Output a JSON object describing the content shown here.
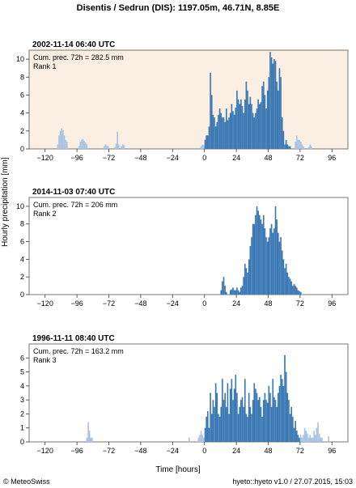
{
  "header": {
    "title": "Disentis / Sedrun (DIS): 1197.05m, 46.71N, 8.85E"
  },
  "axes": {
    "xlabel": "Time [hours]",
    "ylabel": "Hourly precipitation [mm]"
  },
  "footer": {
    "left": "© MeteoSwiss",
    "right": "hyeto::hyeto v1.0 / 27.07.2015, 15:03"
  },
  "colors": {
    "primary": "#3a78b4",
    "secondary": "#a9c3e3",
    "highlight_bg": "#fbeee2"
  },
  "chart_data": [
    {
      "type": "bar",
      "title": "2002-11-14 06:40 UTC",
      "annotation": [
        "Cum. prec. 72h = 282.5 mm",
        "Rank 1"
      ],
      "highlight_background": true,
      "xlim": [
        -132,
        108
      ],
      "ylim": [
        0,
        11
      ],
      "xticks": [
        -120,
        -96,
        -72,
        -48,
        -24,
        0,
        24,
        48,
        72,
        96
      ],
      "yticks": [
        0,
        2,
        4,
        6,
        8,
        10
      ],
      "series": [
        {
          "x": [
            -111,
            -110,
            -109,
            -108,
            -107,
            -106,
            -105,
            -104
          ],
          "values": [
            0.5,
            1.5,
            2,
            2.3,
            2.1,
            1.5,
            1.0,
            0.8
          ],
          "color": "secondary"
        },
        {
          "x": [
            -95,
            -94,
            -93,
            -92,
            -91,
            -90,
            -89
          ],
          "values": [
            0.3,
            0.8,
            1.0,
            1.1,
            0.9,
            0.7,
            0.5
          ],
          "color": "secondary"
        },
        {
          "x": [
            -76,
            -75,
            -74,
            -73
          ],
          "values": [
            0.3,
            0.5,
            0.4,
            0.3
          ],
          "color": "secondary"
        },
        {
          "x": [
            -68,
            -67,
            -66,
            -65
          ],
          "values": [
            0.2,
            0.6,
            1.9,
            0.5
          ],
          "color": "secondary"
        },
        {
          "x": [
            -63,
            -62,
            -61
          ],
          "values": [
            0.3,
            0.5,
            0.4
          ],
          "color": "secondary"
        },
        {
          "x": [
            -3,
            -2,
            -1
          ],
          "values": [
            0.3,
            0.5,
            0.4
          ],
          "color": "secondary"
        },
        {
          "x": [
            0,
            1,
            2,
            3,
            4,
            5,
            6,
            7,
            8,
            9,
            10,
            11,
            12,
            13,
            14,
            15,
            16,
            17,
            18,
            19,
            20,
            21,
            22,
            23,
            24,
            25,
            26,
            27,
            28,
            29,
            30,
            31,
            32,
            33,
            34,
            35,
            36,
            37,
            38,
            39,
            40,
            41,
            42,
            43,
            44,
            45,
            46,
            47,
            48,
            49,
            50,
            51,
            52,
            53,
            54,
            55,
            56,
            57,
            58,
            59
          ],
          "values": [
            1.0,
            1.5,
            1.5,
            2.5,
            8.5,
            6.0,
            3.8,
            3.5,
            2.5,
            3.0,
            3.8,
            4.5,
            4.0,
            3.5,
            3.5,
            3.0,
            4.5,
            3.2,
            3.5,
            4.0,
            5.0,
            4.2,
            3.8,
            4.6,
            6.5,
            5.5,
            5.0,
            5.5,
            4.8,
            4.0,
            5.5,
            7.5,
            6.5,
            5.0,
            5.8,
            5.0,
            4.0,
            3.5,
            4.0,
            4.5,
            5.5,
            5.0,
            5.2,
            7.0,
            7.5,
            6.0,
            4.5,
            6.5,
            8.0,
            10.8,
            10.2,
            9.5,
            10.0,
            9.8,
            7.5,
            6.5,
            9.0,
            8.0,
            3.5,
            2.0
          ],
          "color": "primary"
        },
        {
          "x": [
            60,
            61,
            62,
            63,
            64
          ],
          "values": [
            0.5,
            1.0,
            0.5,
            0.3,
            0.3
          ],
          "color": "primary"
        },
        {
          "x": [
            68,
            69,
            70,
            71,
            72,
            73,
            74
          ],
          "values": [
            0.8,
            1.5,
            1.0,
            1.0,
            0.8,
            0.5,
            0.3
          ],
          "color": "secondary"
        },
        {
          "x": [
            78,
            79,
            80
          ],
          "values": [
            0.2,
            0.5,
            0.3
          ],
          "color": "secondary"
        }
      ]
    },
    {
      "type": "bar",
      "title": "2014-11-03 07:40 UTC",
      "annotation": [
        "Cum. prec. 72h = 206 mm",
        "Rank 2"
      ],
      "highlight_background": false,
      "xlim": [
        -132,
        108
      ],
      "ylim": [
        0,
        11
      ],
      "xticks": [
        -120,
        -96,
        -72,
        -48,
        -24,
        0,
        24,
        48,
        72,
        96
      ],
      "yticks": [
        0,
        2,
        4,
        6,
        8,
        10
      ],
      "series": [
        {
          "x": [
            12,
            13,
            14,
            15,
            16
          ],
          "values": [
            0.5,
            1.5,
            2.0,
            1.0,
            0.3
          ],
          "color": "primary"
        },
        {
          "x": [
            19,
            20,
            21,
            22,
            23,
            24,
            25,
            26,
            27,
            28,
            29,
            30,
            31,
            32,
            33,
            34,
            35,
            36,
            37,
            38,
            39,
            40,
            41,
            42,
            43,
            44,
            45,
            46,
            47,
            48,
            49,
            50,
            51,
            52,
            53,
            54,
            55,
            56,
            57,
            58,
            59,
            60,
            61,
            62,
            63,
            64,
            65,
            66,
            67,
            68,
            69,
            70,
            71,
            72
          ],
          "values": [
            0.5,
            0.6,
            0.8,
            0.5,
            0.5,
            0.8,
            0.5,
            0.3,
            0.8,
            1.0,
            2.0,
            3.5,
            3.0,
            2.5,
            4.0,
            5.5,
            6.5,
            8.0,
            8.0,
            9.0,
            10.0,
            9.5,
            9.0,
            8.5,
            8.0,
            9.0,
            7.5,
            6.5,
            6.0,
            6.5,
            7.5,
            8.0,
            7.0,
            7.5,
            10.0,
            8.5,
            7.0,
            6.0,
            6.5,
            5.0,
            4.0,
            3.0,
            3.5,
            2.5,
            2.0,
            1.8,
            1.5,
            1.0,
            1.2,
            1.0,
            0.8,
            0.5,
            0.4,
            0.3
          ],
          "color": "primary"
        }
      ]
    },
    {
      "type": "bar",
      "title": "1996-11-11 08:40 UTC",
      "annotation": [
        "Cum. prec. 72h = 163.2 mm",
        "Rank 3"
      ],
      "highlight_background": false,
      "xlim": [
        -132,
        108
      ],
      "ylim": [
        0,
        7
      ],
      "xticks": [
        -120,
        -96,
        -72,
        -48,
        -24,
        0,
        24,
        48,
        72,
        96
      ],
      "yticks": [
        0,
        1,
        2,
        3,
        4,
        5,
        6
      ],
      "series": [
        {
          "x": [
            -89,
            -88,
            -87,
            -86,
            -85
          ],
          "values": [
            0.3,
            1.4,
            0.8,
            0.3,
            0.3
          ],
          "color": "secondary"
        },
        {
          "x": [
            -12
          ],
          "values": [
            0.3
          ],
          "color": "secondary"
        },
        {
          "x": [
            -5,
            -4,
            -3,
            -2,
            -1
          ],
          "values": [
            0.3,
            0.5,
            0.8,
            0.5,
            0.3
          ],
          "color": "secondary"
        },
        {
          "x": [
            0,
            1,
            2,
            3,
            4,
            5,
            6,
            7,
            8,
            9,
            10,
            11,
            12,
            13,
            14,
            15,
            16,
            17,
            18,
            19,
            20,
            21,
            22,
            23,
            24,
            25,
            26,
            27,
            28,
            29,
            30,
            31,
            32,
            33,
            34,
            35,
            36,
            37,
            38,
            39,
            40,
            41,
            42,
            43,
            44,
            45,
            46,
            47,
            48,
            49,
            50,
            51,
            52,
            53,
            54,
            55,
            56,
            57,
            58,
            59,
            60,
            61,
            62,
            63,
            64,
            65,
            66,
            67,
            68,
            69,
            70,
            71
          ],
          "values": [
            1.0,
            1.8,
            2.2,
            1.0,
            3.5,
            2.0,
            3.0,
            2.5,
            4.2,
            3.5,
            2.0,
            1.8,
            2.5,
            4.5,
            3.0,
            3.5,
            2.5,
            4.2,
            2.0,
            3.8,
            4.5,
            3.0,
            3.8,
            4.8,
            3.5,
            2.0,
            2.5,
            3.0,
            3.2,
            2.5,
            4.5,
            2.0,
            1.8,
            3.5,
            2.5,
            2.0,
            3.0,
            4.2,
            3.8,
            3.5,
            3.0,
            3.2,
            2.5,
            1.8,
            3.0,
            3.5,
            3.0,
            2.8,
            4.0,
            3.5,
            2.5,
            4.5,
            3.2,
            3.0,
            2.5,
            3.5,
            4.0,
            4.8,
            4.5,
            4.0,
            6.2,
            5.0,
            3.5,
            3.0,
            2.0,
            2.5,
            1.8,
            1.0,
            1.5,
            0.8,
            0.5,
            0.3
          ],
          "color": "primary"
        },
        {
          "x": [
            72,
            73,
            74,
            75,
            76,
            77,
            78,
            79,
            80,
            81,
            82,
            83,
            84,
            85,
            86,
            87,
            88
          ],
          "values": [
            0.5,
            0.3,
            0.5,
            1.0,
            0.8,
            0.6,
            0.3,
            0.5,
            0.3,
            0.3,
            0.8,
            0.5,
            1.0,
            1.4,
            0.6,
            0.3,
            0.3
          ],
          "color": "secondary"
        },
        {
          "x": [
            93
          ],
          "values": [
            0.4
          ],
          "color": "secondary"
        }
      ]
    }
  ]
}
